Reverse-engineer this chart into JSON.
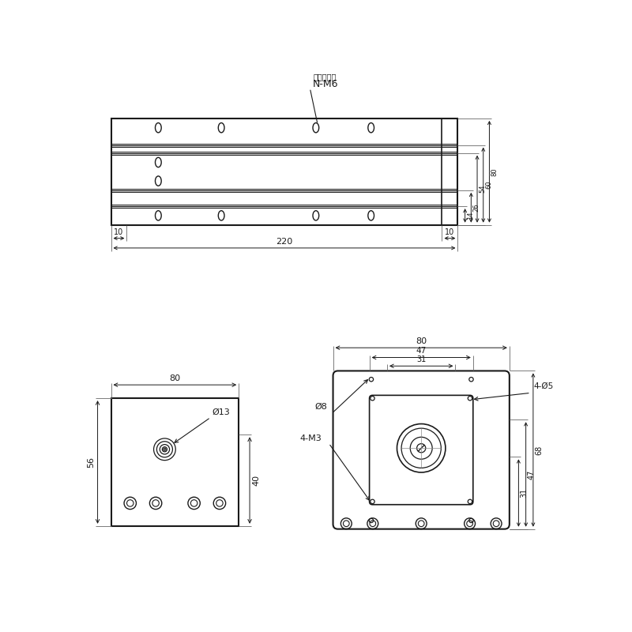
{
  "bg_color": "#ffffff",
  "line_color": "#1a1a1a",
  "text_color": "#1a1a1a",
  "top_view": {
    "note_text1": "可移动螺母",
    "note_text2": "N-M6"
  },
  "left_view": {
    "dim_13": "Ø13",
    "dim_56": "56",
    "dim_80": "80",
    "dim_40": "40"
  },
  "right_view": {
    "dim_80": "80",
    "dim_47": "47",
    "dim_31": "31",
    "dim_31r": "31",
    "dim_47r": "47",
    "dim_68": "68",
    "dim_phi8": "Ø8",
    "dim_4m3": "4-M3",
    "dim_4phi5": "4-Ø5"
  }
}
